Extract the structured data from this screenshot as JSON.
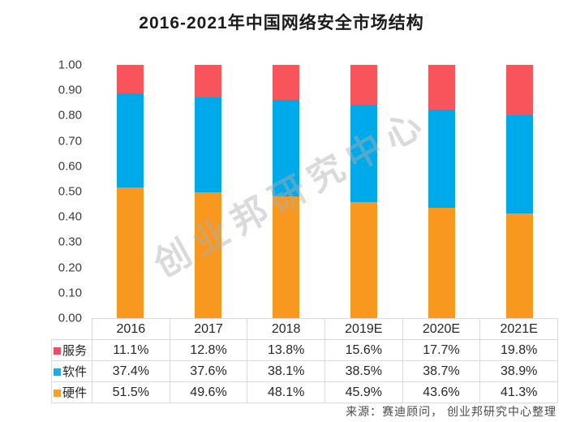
{
  "title": "2016-2021年中国网络安全市场结构",
  "watermark": "创业邦研究中心",
  "source_note": "来源：赛迪顾问， 创业邦研究中心整理",
  "colors": {
    "service": "#F8545B",
    "software": "#00A9E9",
    "hardware": "#F8981F",
    "legend_service": "#E94F6B",
    "legend_software": "#2BA8E0",
    "legend_hardware": "#F0A039",
    "table_border": "#D9D9D9",
    "watermark": "#ACACAC"
  },
  "chart_data": {
    "type": "bar",
    "stacked": true,
    "title": "2016-2021年中国网络安全市场结构",
    "categories": [
      "2016",
      "2017",
      "2018",
      "2019E",
      "2020E",
      "2021E"
    ],
    "series": [
      {
        "name": "服务",
        "color": "#F8545B",
        "legend_color": "#E94F6B",
        "values": [
          11.1,
          12.8,
          13.8,
          15.6,
          17.7,
          19.8
        ],
        "display": [
          "11.1%",
          "12.8%",
          "13.8%",
          "15.6%",
          "17.7%",
          "19.8%"
        ]
      },
      {
        "name": "软件",
        "color": "#00A9E9",
        "legend_color": "#2BA8E0",
        "values": [
          37.4,
          37.6,
          38.1,
          38.5,
          38.7,
          38.9
        ],
        "display": [
          "37.4%",
          "37.6%",
          "38.1%",
          "38.5%",
          "38.7%",
          "38.9%"
        ]
      },
      {
        "name": "硬件",
        "color": "#F8981F",
        "legend_color": "#F0A039",
        "values": [
          51.5,
          49.6,
          48.1,
          45.9,
          43.6,
          41.3
        ],
        "display": [
          "51.5%",
          "49.6%",
          "48.1%",
          "45.9%",
          "43.6%",
          "41.3%"
        ]
      }
    ],
    "ylim": [
      0,
      1
    ],
    "ytick_step": 0.1,
    "yticks": [
      "1.00",
      "0.90",
      "0.80",
      "0.70",
      "0.60",
      "0.50",
      "0.40",
      "0.30",
      "0.20",
      "0.10",
      "0.00"
    ],
    "grid": false,
    "legend_position": "table-rows-left",
    "value_format": "percent-of-total"
  }
}
